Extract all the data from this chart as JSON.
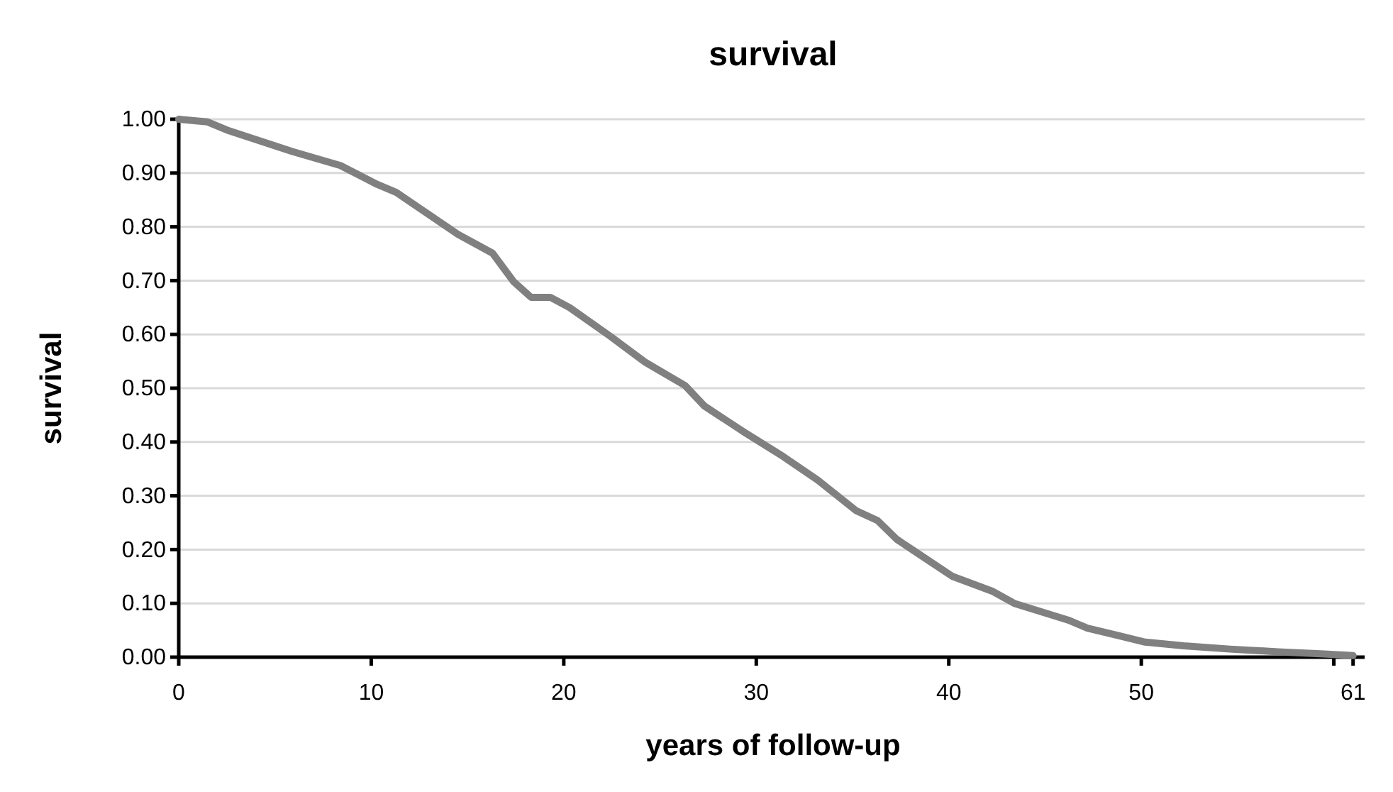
{
  "chart_data": {
    "type": "line",
    "title": "survival",
    "xlabel": "years of follow-up",
    "ylabel": "survival",
    "x": [
      0,
      1.5,
      2.5,
      5.9,
      8.4,
      10.3,
      11.3,
      14.5,
      16.3,
      17.4,
      18.3,
      19.3,
      20.3,
      22.4,
      24.2,
      26.3,
      27.3,
      29.3,
      31.4,
      33.2,
      35.2,
      36.3,
      37.3,
      38.6,
      40.2,
      42.3,
      43.4,
      46.2,
      47.2,
      48.7,
      50.2,
      52.2,
      54.6,
      57.1,
      59.5,
      61
    ],
    "series": [
      {
        "color": "#808080",
        "values": [
          1.0,
          0.995,
          0.98,
          0.94,
          0.914,
          0.879,
          0.864,
          0.786,
          0.751,
          0.698,
          0.669,
          0.669,
          0.65,
          0.597,
          0.549,
          0.505,
          0.467,
          0.42,
          0.373,
          0.329,
          0.272,
          0.254,
          0.219,
          0.188,
          0.15,
          0.122,
          0.1,
          0.069,
          0.054,
          0.041,
          0.028,
          0.021,
          0.015,
          0.01,
          0.006,
          0.003
        ]
      }
    ],
    "xlim": [
      0,
      61.6
    ],
    "xticks": [
      0,
      10,
      20,
      30,
      40,
      50,
      {
        "value": 60,
        "label": null
      },
      61
    ],
    "ylim": [
      0,
      1
    ],
    "yticks": [
      {
        "value": 0,
        "label": "0.00"
      },
      {
        "value": 0.1,
        "label": "0.10"
      },
      {
        "value": 0.2,
        "label": "0.20"
      },
      {
        "value": 0.3,
        "label": "0.30"
      },
      {
        "value": 0.4,
        "label": "0.40"
      },
      {
        "value": 0.5,
        "label": "0.50"
      },
      {
        "value": 0.6,
        "label": "0.60"
      },
      {
        "value": 0.7,
        "label": "0.70"
      },
      {
        "value": 0.8,
        "label": "0.80"
      },
      {
        "value": 0.9,
        "label": "0.90"
      },
      {
        "value": 1,
        "label": "1.00"
      }
    ],
    "grid": "y",
    "marker": "none",
    "line_style": "solid"
  }
}
